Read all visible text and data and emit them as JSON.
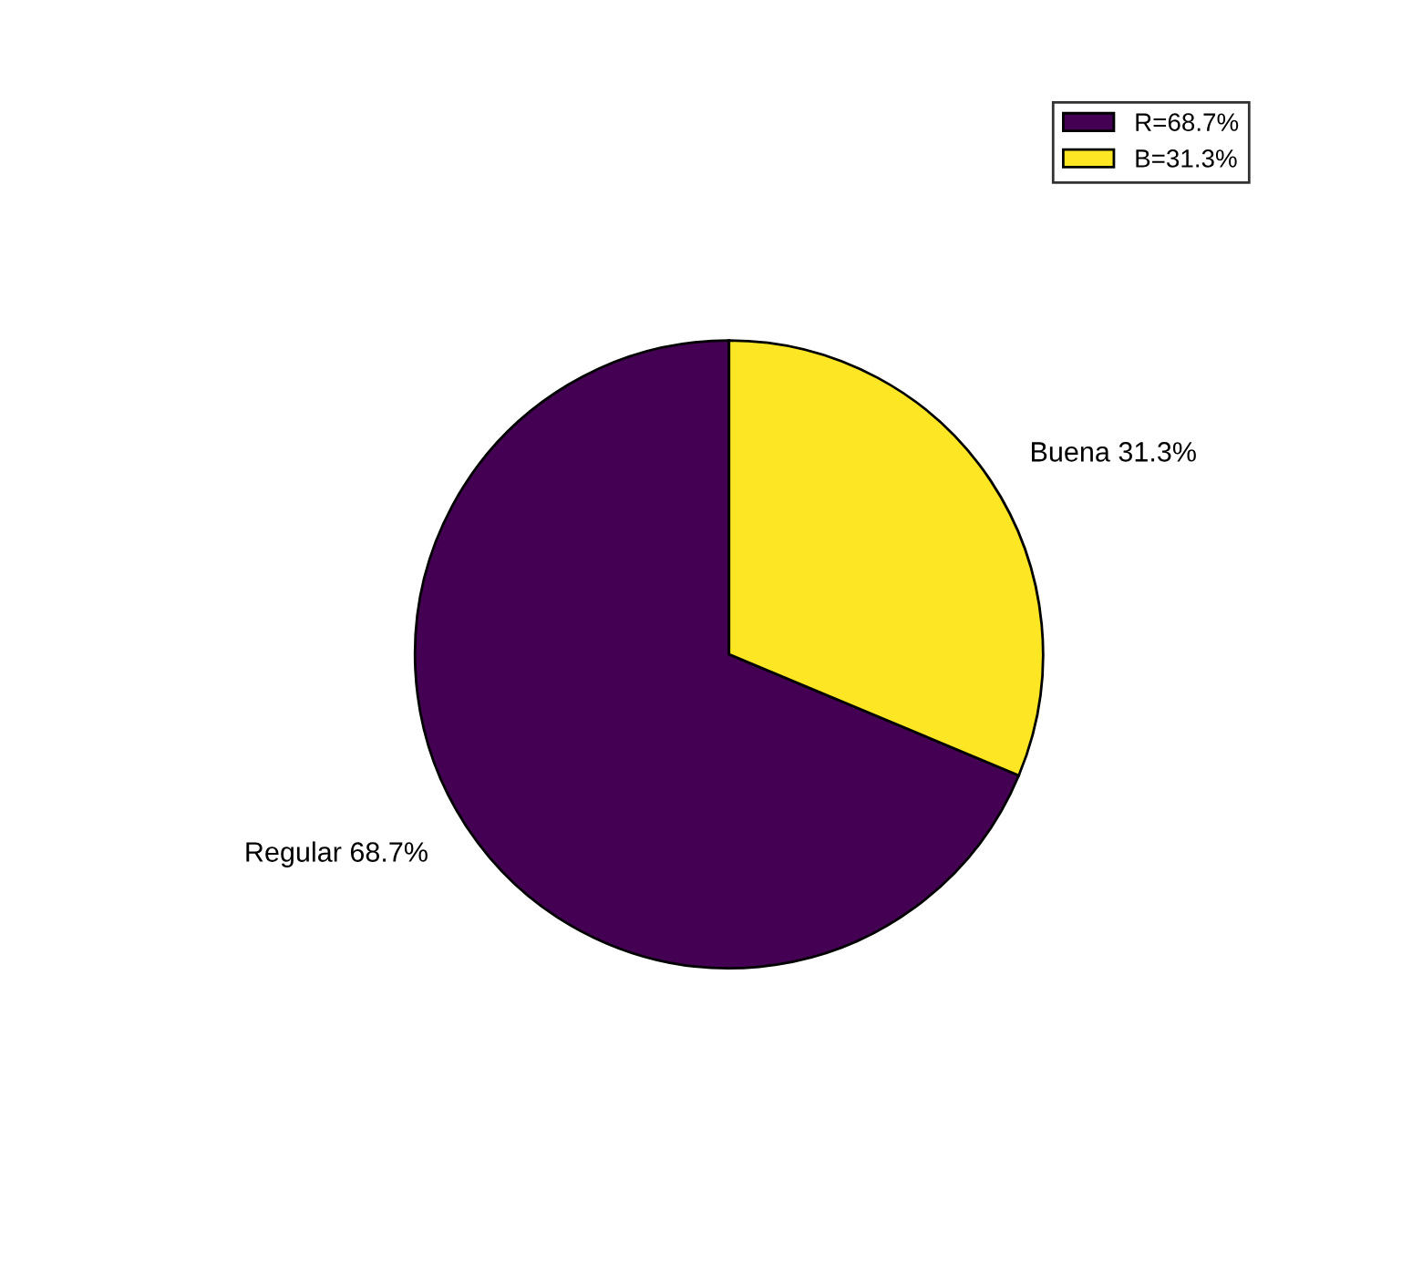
{
  "chart_data": {
    "type": "pie",
    "categories": [
      "R=68.7%",
      "B=31.3%"
    ],
    "values": [
      68.7,
      31.3
    ],
    "value_labels": [
      "Regular 68.7%",
      "Buena 31.3%"
    ],
    "colors": [
      "#440154",
      "#fde725"
    ],
    "legend": "top right"
  }
}
